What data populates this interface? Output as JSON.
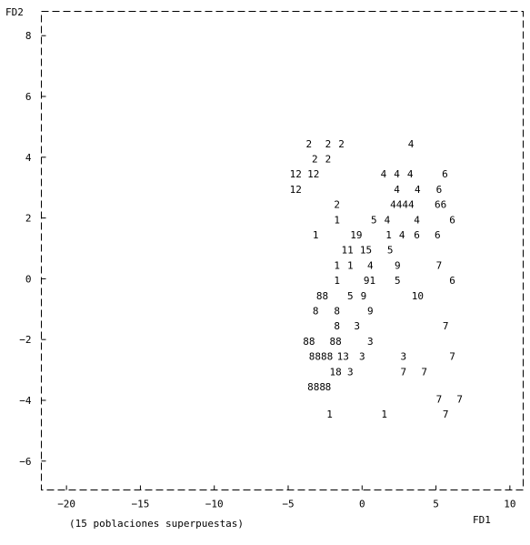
{
  "chart_data": {
    "type": "scatter",
    "title": "",
    "xlabel": "FD1",
    "ylabel": "FD2",
    "xlim": [
      -21.7,
      10.9
    ],
    "ylim": [
      -6.95,
      8.8
    ],
    "x_ticks": [
      -20,
      -15,
      -10,
      -5,
      0,
      5,
      10
    ],
    "x_tick_labels": [
      "−20",
      "−15",
      "−10",
      "−5",
      "0",
      "5",
      "10"
    ],
    "y_ticks": [
      8,
      6,
      4,
      2,
      0,
      -2,
      -4,
      -6
    ],
    "y_tick_labels": [
      "8",
      "6",
      "4",
      "2",
      "0",
      "−2",
      "−4",
      "−6"
    ],
    "frame": "dashed",
    "grid": false,
    "note": "(15 poblaciones superpuestas)",
    "points": [
      {
        "label": "2",
        "x": -3.8,
        "y": 4.45
      },
      {
        "label": "2",
        "x": -2.5,
        "y": 4.45
      },
      {
        "label": "2",
        "x": -1.6,
        "y": 4.45
      },
      {
        "label": "4",
        "x": 3.1,
        "y": 4.45
      },
      {
        "label": "2",
        "x": -3.4,
        "y": 3.95
      },
      {
        "label": "2",
        "x": -2.5,
        "y": 3.95
      },
      {
        "label": "12",
        "x": -4.9,
        "y": 3.45
      },
      {
        "label": "12",
        "x": -3.7,
        "y": 3.45
      },
      {
        "label": "4",
        "x": 1.25,
        "y": 3.45
      },
      {
        "label": "4",
        "x": 2.15,
        "y": 3.45
      },
      {
        "label": "4",
        "x": 3.05,
        "y": 3.45
      },
      {
        "label": "6",
        "x": 5.4,
        "y": 3.45
      },
      {
        "label": "12",
        "x": -4.9,
        "y": 2.95
      },
      {
        "label": "4",
        "x": 2.15,
        "y": 2.95
      },
      {
        "label": "4",
        "x": 3.55,
        "y": 2.95
      },
      {
        "label": "6",
        "x": 5.0,
        "y": 2.95
      },
      {
        "label": "2",
        "x": -1.9,
        "y": 2.45
      },
      {
        "label": "4444",
        "x": 1.9,
        "y": 2.45
      },
      {
        "label": "66",
        "x": 4.9,
        "y": 2.45
      },
      {
        "label": "1",
        "x": -1.9,
        "y": 1.95
      },
      {
        "label": "5",
        "x": 0.6,
        "y": 1.95
      },
      {
        "label": "4",
        "x": 1.5,
        "y": 1.95
      },
      {
        "label": "4",
        "x": 3.5,
        "y": 1.95
      },
      {
        "label": "6",
        "x": 5.9,
        "y": 1.95
      },
      {
        "label": "1",
        "x": -3.35,
        "y": 1.45
      },
      {
        "label": "19",
        "x": -0.8,
        "y": 1.45
      },
      {
        "label": "1",
        "x": 1.6,
        "y": 1.45
      },
      {
        "label": "4",
        "x": 2.5,
        "y": 1.45
      },
      {
        "label": "6",
        "x": 3.5,
        "y": 1.45
      },
      {
        "label": "6",
        "x": 4.9,
        "y": 1.45
      },
      {
        "label": "11",
        "x": -1.4,
        "y": 0.95
      },
      {
        "label": "15",
        "x": -0.15,
        "y": 0.95
      },
      {
        "label": "5",
        "x": 1.7,
        "y": 0.95
      },
      {
        "label": "1",
        "x": -1.9,
        "y": 0.45
      },
      {
        "label": "1",
        "x": -1.0,
        "y": 0.45
      },
      {
        "label": "4",
        "x": 0.35,
        "y": 0.45
      },
      {
        "label": "9",
        "x": 2.2,
        "y": 0.45
      },
      {
        "label": "7",
        "x": 5.0,
        "y": 0.45
      },
      {
        "label": "1",
        "x": -1.9,
        "y": -0.05
      },
      {
        "label": "91",
        "x": 0.1,
        "y": -0.05
      },
      {
        "label": "5",
        "x": 2.2,
        "y": -0.05
      },
      {
        "label": "6",
        "x": 5.9,
        "y": -0.05
      },
      {
        "label": "88",
        "x": -3.1,
        "y": -0.55
      },
      {
        "label": "5",
        "x": -1.0,
        "y": -0.55
      },
      {
        "label": "9",
        "x": -0.1,
        "y": -0.55
      },
      {
        "label": "10",
        "x": 3.35,
        "y": -0.55
      },
      {
        "label": "8",
        "x": -3.35,
        "y": -1.05
      },
      {
        "label": "8",
        "x": -1.9,
        "y": -1.05
      },
      {
        "label": "9",
        "x": 0.35,
        "y": -1.05
      },
      {
        "label": "8",
        "x": -1.9,
        "y": -1.55
      },
      {
        "label": "3",
        "x": -0.55,
        "y": -1.55
      },
      {
        "label": "7",
        "x": 5.45,
        "y": -1.55
      },
      {
        "label": "88",
        "x": -4.0,
        "y": -2.05
      },
      {
        "label": "88",
        "x": -2.2,
        "y": -2.05
      },
      {
        "label": "3",
        "x": 0.35,
        "y": -2.05
      },
      {
        "label": "8888",
        "x": -3.6,
        "y": -2.55
      },
      {
        "label": "13",
        "x": -1.7,
        "y": -2.55
      },
      {
        "label": "3",
        "x": -0.2,
        "y": -2.55
      },
      {
        "label": "3",
        "x": 2.6,
        "y": -2.55
      },
      {
        "label": "7",
        "x": 5.9,
        "y": -2.55
      },
      {
        "label": "18",
        "x": -2.2,
        "y": -3.05
      },
      {
        "label": "3",
        "x": -1.0,
        "y": -3.05
      },
      {
        "label": "7",
        "x": 2.6,
        "y": -3.05
      },
      {
        "label": "7",
        "x": 4.0,
        "y": -3.05
      },
      {
        "label": "888",
        "x": -3.7,
        "y": -3.55
      },
      {
        "label": "8",
        "x": -2.5,
        "y": -3.55
      },
      {
        "label": "7",
        "x": 5.0,
        "y": -3.95
      },
      {
        "label": "7",
        "x": 6.4,
        "y": -3.95
      },
      {
        "label": "1",
        "x": -2.4,
        "y": -4.45
      },
      {
        "label": "1",
        "x": 1.3,
        "y": -4.45
      },
      {
        "label": "7",
        "x": 5.45,
        "y": -4.45
      }
    ]
  }
}
